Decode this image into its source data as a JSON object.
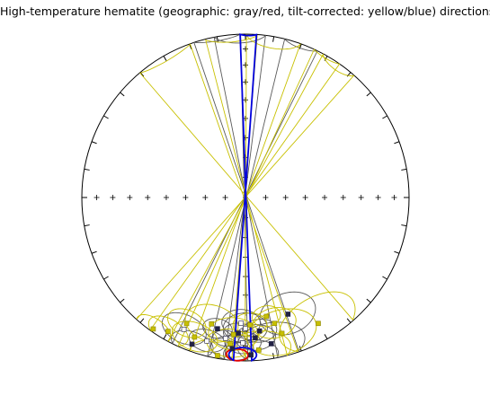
{
  "chart_data": {
    "type": "scatter",
    "projection": "equal-area stereonet, lower hemisphere",
    "title": "High-temperature hematite (geographic: gray/red, tilt-corrected: yellow/blue) directions",
    "grid": false,
    "ticks": {
      "rim_every_deg": 10,
      "cross_every_deg": 10
    },
    "colors": {
      "geographic_ellipse": "#5a5a5a",
      "geographic_mean": "#e00000",
      "tilt_corrected_ellipse": "#c8c000",
      "tilt_corrected_mean": "#0000dd",
      "outline": "#000000"
    },
    "series": [
      {
        "name": "geographic",
        "marker": "square",
        "color": "#5a5a5a",
        "points": [
          {
            "dec": 185,
            "inc": 8,
            "a95": 8,
            "filled": true
          },
          {
            "dec": 178,
            "inc": 4,
            "a95": 10,
            "filled": true
          },
          {
            "dec": 170,
            "inc": 10,
            "a95": 13,
            "filled": true
          },
          {
            "dec": 181,
            "inc": 12,
            "a95": 7,
            "filled": false
          },
          {
            "dec": 176,
            "inc": 15,
            "a95": 8,
            "filled": true
          },
          {
            "dec": 188,
            "inc": 14,
            "a95": 5,
            "filled": false
          },
          {
            "dec": 183,
            "inc": 18,
            "a95": 6,
            "filled": true
          },
          {
            "dec": 195,
            "inc": 10,
            "a95": 7,
            "filled": false
          },
          {
            "dec": 174,
            "inc": 19,
            "a95": 7,
            "filled": true
          },
          {
            "dec": 180,
            "inc": 21,
            "a95": 9,
            "filled": false
          },
          {
            "dec": 200,
            "inc": 5,
            "a95": 8,
            "filled": true
          },
          {
            "dec": 160,
            "inc": 25,
            "a95": 12,
            "filled": true
          },
          {
            "dec": 192,
            "inc": 19,
            "a95": 6,
            "filled": true
          },
          {
            "dec": 182,
            "inc": 24,
            "a95": 8,
            "filled": false
          },
          {
            "dec": 205,
            "inc": 12,
            "a95": 9,
            "filled": false
          }
        ]
      },
      {
        "name": "tilt-corrected",
        "marker": "square",
        "color": "#c8c000",
        "points": [
          {
            "dec": 190,
            "inc": 2,
            "a95": 10,
            "filled": true
          },
          {
            "dec": 175,
            "inc": 7,
            "a95": 12,
            "filled": true
          },
          {
            "dec": 200,
            "inc": 10,
            "a95": 9,
            "filled": true
          },
          {
            "dec": 210,
            "inc": 6,
            "a95": 8,
            "filled": true
          },
          {
            "dec": 150,
            "inc": 12,
            "a95": 16,
            "filled": true
          },
          {
            "dec": 165,
            "inc": 15,
            "a95": 14,
            "filled": true
          },
          {
            "dec": 185,
            "inc": 17,
            "a95": 10,
            "filled": true
          },
          {
            "dec": 195,
            "inc": 21,
            "a95": 11,
            "filled": true
          },
          {
            "dec": 178,
            "inc": 23,
            "a95": 7,
            "filled": true
          },
          {
            "dec": 215,
            "inc": 2,
            "a95": 7,
            "filled": true
          },
          {
            "dec": 170,
            "inc": 27,
            "a95": 6,
            "filled": true
          },
          {
            "dec": 205,
            "inc": 16,
            "a95": 8,
            "filled": true
          },
          {
            "dec": 186,
            "inc": 11,
            "a95": 9,
            "filled": true
          },
          {
            "dec": 167,
            "inc": 22,
            "a95": 9,
            "filled": true
          }
        ]
      }
    ],
    "means": [
      {
        "name": "geographic mean",
        "dec": 183,
        "inc": 4,
        "a95": 4,
        "color": "#e00000"
      },
      {
        "name": "tilt-corrected mean",
        "dec": 181,
        "inc": 4,
        "a95": 5,
        "color": "#0000dd"
      }
    ]
  }
}
